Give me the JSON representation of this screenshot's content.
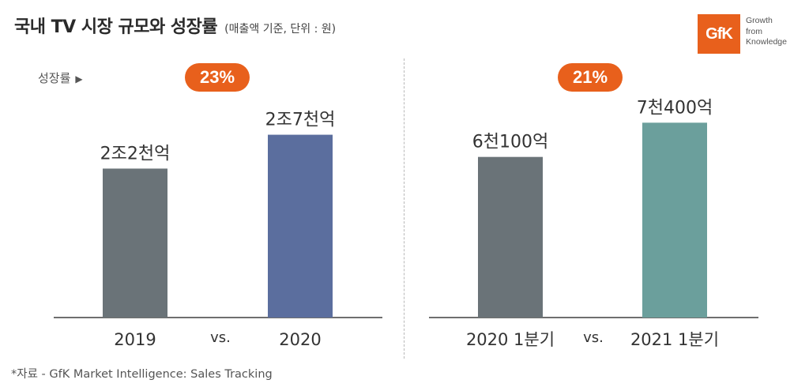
{
  "header": {
    "title": "국내 TV 시장 규모와 성장률",
    "subtitle": "(매출액 기준, 단위 : 원)"
  },
  "logo": {
    "mark": "GfK",
    "tagline": [
      "Growth",
      "from",
      "Knowledge"
    ],
    "color": "#e8601c"
  },
  "growth_label": "성장률",
  "growth_arrow_icon": "triangle-right-icon",
  "footnote": "*자료 - GfK Market Intelligence: Sales Tracking",
  "chart_data": [
    {
      "type": "bar",
      "categories": [
        "2019",
        "2020"
      ],
      "values": [
        2.2,
        2.7
      ],
      "value_labels": [
        "2조2천억",
        "2조7천억"
      ],
      "unit": "조원",
      "ylim": [
        0,
        3.5
      ],
      "growth": "23%",
      "separator": "vs.",
      "colors": [
        "#6a7378",
        "#5b6e9e"
      ]
    },
    {
      "type": "bar",
      "categories": [
        "2020 1분기",
        "2021 1분기"
      ],
      "values": [
        0.61,
        0.74
      ],
      "value_labels": [
        "6천100억",
        "7천400억"
      ],
      "unit": "조원",
      "ylim": [
        0,
        0.9
      ],
      "growth": "21%",
      "separator": "vs.",
      "colors": [
        "#6a7378",
        "#6b9f9c"
      ]
    }
  ]
}
